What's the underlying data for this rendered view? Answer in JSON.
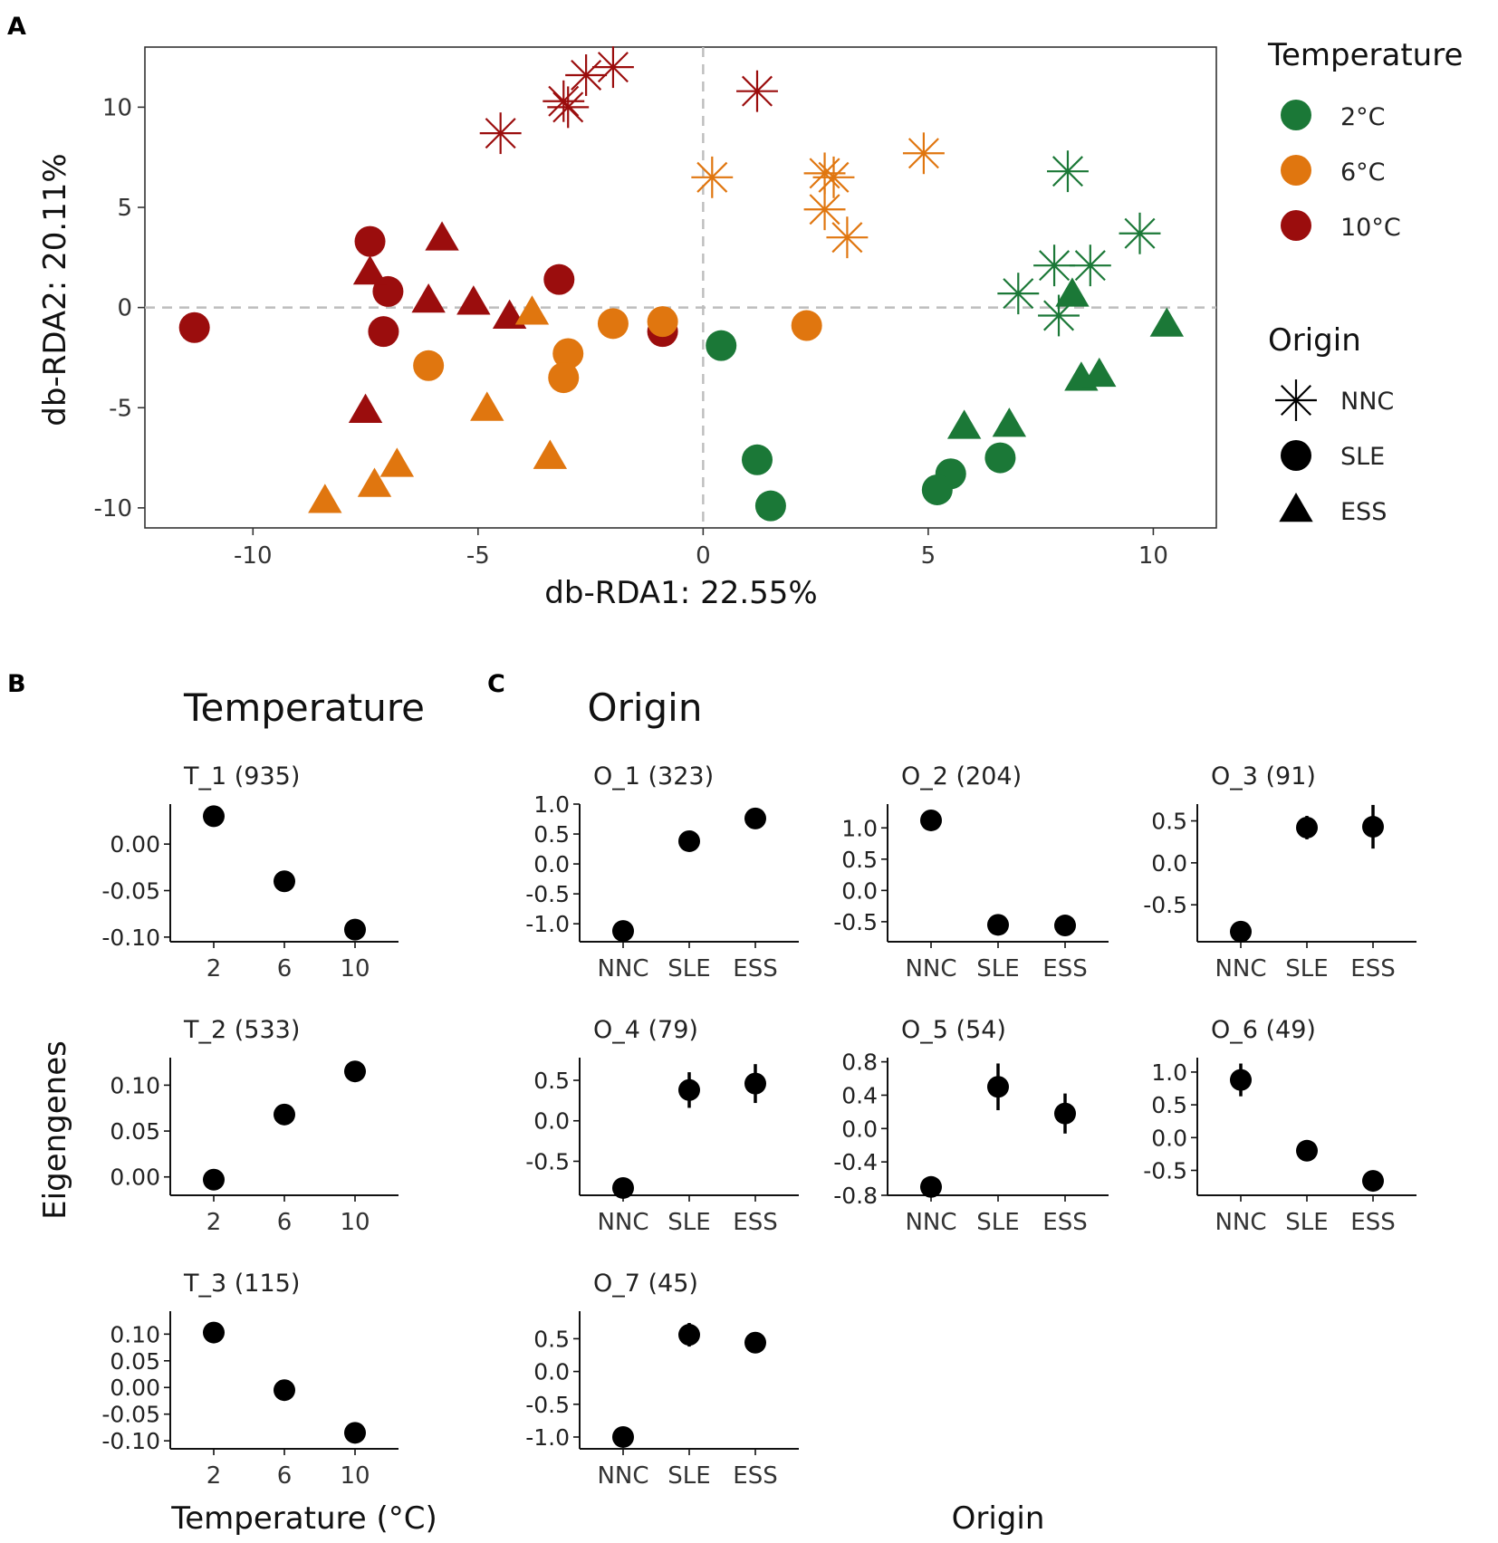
{
  "figure": {
    "panel_a_letter": "A",
    "panel_b_letter": "B",
    "panel_c_letter": "C"
  },
  "chart_data": [
    {
      "id": "A",
      "type": "scatter",
      "xlabel": "db-RDA1: 22.55%",
      "ylabel": "db-RDA2: 20.11%",
      "xlim": [
        -12.4,
        11.4
      ],
      "ylim": [
        -11,
        13
      ],
      "xticks": [
        -10,
        -5,
        0,
        5,
        10
      ],
      "yticks": [
        10,
        5,
        0,
        -5,
        -10
      ],
      "xtick_labels": [
        "-10",
        "-5",
        "0",
        "5",
        "10"
      ],
      "ytick_labels": [
        "10",
        "5",
        "0",
        "-5",
        "-10"
      ],
      "reference_lines": {
        "x": 0,
        "y": 0
      },
      "legend": {
        "color_title": "Temperature",
        "color_entries": [
          {
            "label": "2°C",
            "color": "#1b7837"
          },
          {
            "label": "6°C",
            "color": "#e0760f"
          },
          {
            "label": "10°C",
            "color": "#9b0d0d"
          }
        ],
        "shape_title": "Origin",
        "shape_entries": [
          {
            "label": "NNC",
            "shape": "asterisk"
          },
          {
            "label": "SLE",
            "shape": "circle"
          },
          {
            "label": "ESS",
            "shape": "triangle"
          }
        ]
      },
      "points": [
        {
          "temp": "10°C",
          "origin": "NNC",
          "x": -4.5,
          "y": 8.7
        },
        {
          "temp": "10°C",
          "origin": "NNC",
          "x": -3.1,
          "y": 10.3
        },
        {
          "temp": "10°C",
          "origin": "NNC",
          "x": -3.0,
          "y": 10.0
        },
        {
          "temp": "10°C",
          "origin": "NNC",
          "x": -2.6,
          "y": 11.6
        },
        {
          "temp": "10°C",
          "origin": "NNC",
          "x": -2.0,
          "y": 12.0
        },
        {
          "temp": "10°C",
          "origin": "NNC",
          "x": 1.2,
          "y": 10.8
        },
        {
          "temp": "6°C",
          "origin": "NNC",
          "x": 0.2,
          "y": 6.5
        },
        {
          "temp": "6°C",
          "origin": "NNC",
          "x": 2.7,
          "y": 6.7
        },
        {
          "temp": "6°C",
          "origin": "NNC",
          "x": 2.9,
          "y": 6.5
        },
        {
          "temp": "6°C",
          "origin": "NNC",
          "x": 2.7,
          "y": 4.9
        },
        {
          "temp": "6°C",
          "origin": "NNC",
          "x": 3.2,
          "y": 3.5
        },
        {
          "temp": "6°C",
          "origin": "NNC",
          "x": 4.9,
          "y": 7.7
        },
        {
          "temp": "2°C",
          "origin": "NNC",
          "x": 8.1,
          "y": 6.8
        },
        {
          "temp": "2°C",
          "origin": "NNC",
          "x": 9.7,
          "y": 3.7
        },
        {
          "temp": "2°C",
          "origin": "NNC",
          "x": 7.8,
          "y": 2.1
        },
        {
          "temp": "2°C",
          "origin": "NNC",
          "x": 8.6,
          "y": 2.1
        },
        {
          "temp": "2°C",
          "origin": "NNC",
          "x": 7.0,
          "y": 0.7
        },
        {
          "temp": "2°C",
          "origin": "NNC",
          "x": 7.9,
          "y": -0.4
        },
        {
          "temp": "10°C",
          "origin": "SLE",
          "x": -11.3,
          "y": -1.0
        },
        {
          "temp": "10°C",
          "origin": "SLE",
          "x": -7.4,
          "y": 3.3
        },
        {
          "temp": "10°C",
          "origin": "SLE",
          "x": -7.0,
          "y": 0.8
        },
        {
          "temp": "10°C",
          "origin": "SLE",
          "x": -7.1,
          "y": -1.2
        },
        {
          "temp": "10°C",
          "origin": "SLE",
          "x": -3.2,
          "y": 1.4
        },
        {
          "temp": "10°C",
          "origin": "SLE",
          "x": -0.9,
          "y": -1.2
        },
        {
          "temp": "6°C",
          "origin": "SLE",
          "x": -6.1,
          "y": -2.9
        },
        {
          "temp": "6°C",
          "origin": "SLE",
          "x": -3.0,
          "y": -2.3
        },
        {
          "temp": "6°C",
          "origin": "SLE",
          "x": -3.1,
          "y": -3.5
        },
        {
          "temp": "6°C",
          "origin": "SLE",
          "x": -2.0,
          "y": -0.8
        },
        {
          "temp": "6°C",
          "origin": "SLE",
          "x": -0.9,
          "y": -0.7
        },
        {
          "temp": "6°C",
          "origin": "SLE",
          "x": 2.3,
          "y": -0.9
        },
        {
          "temp": "2°C",
          "origin": "SLE",
          "x": 0.4,
          "y": -1.9
        },
        {
          "temp": "2°C",
          "origin": "SLE",
          "x": 1.2,
          "y": -7.6
        },
        {
          "temp": "2°C",
          "origin": "SLE",
          "x": 1.5,
          "y": -9.9
        },
        {
          "temp": "2°C",
          "origin": "SLE",
          "x": 5.5,
          "y": -8.3
        },
        {
          "temp": "2°C",
          "origin": "SLE",
          "x": 5.2,
          "y": -9.1
        },
        {
          "temp": "2°C",
          "origin": "SLE",
          "x": 6.6,
          "y": -7.5
        },
        {
          "temp": "10°C",
          "origin": "ESS",
          "x": -7.4,
          "y": 1.7
        },
        {
          "temp": "10°C",
          "origin": "ESS",
          "x": -5.8,
          "y": 3.4
        },
        {
          "temp": "10°C",
          "origin": "ESS",
          "x": -6.1,
          "y": 0.3
        },
        {
          "temp": "10°C",
          "origin": "ESS",
          "x": -5.1,
          "y": 0.2
        },
        {
          "temp": "10°C",
          "origin": "ESS",
          "x": -4.3,
          "y": -0.5
        },
        {
          "temp": "10°C",
          "origin": "ESS",
          "x": -7.5,
          "y": -5.2
        },
        {
          "temp": "6°C",
          "origin": "ESS",
          "x": -3.8,
          "y": -0.3
        },
        {
          "temp": "6°C",
          "origin": "ESS",
          "x": -4.8,
          "y": -5.1
        },
        {
          "temp": "6°C",
          "origin": "ESS",
          "x": -3.4,
          "y": -7.5
        },
        {
          "temp": "6°C",
          "origin": "ESS",
          "x": -8.4,
          "y": -9.7
        },
        {
          "temp": "6°C",
          "origin": "ESS",
          "x": -7.3,
          "y": -8.9
        },
        {
          "temp": "6°C",
          "origin": "ESS",
          "x": -6.8,
          "y": -7.9
        },
        {
          "temp": "2°C",
          "origin": "ESS",
          "x": 5.8,
          "y": -6.0
        },
        {
          "temp": "2°C",
          "origin": "ESS",
          "x": 6.8,
          "y": -5.9
        },
        {
          "temp": "2°C",
          "origin": "ESS",
          "x": 8.4,
          "y": -3.6
        },
        {
          "temp": "2°C",
          "origin": "ESS",
          "x": 8.8,
          "y": -3.4
        },
        {
          "temp": "2°C",
          "origin": "ESS",
          "x": 8.2,
          "y": 0.6
        },
        {
          "temp": "2°C",
          "origin": "ESS",
          "x": 10.3,
          "y": -0.9
        }
      ]
    },
    {
      "id": "B",
      "type": "scatter",
      "section_title": "Temperature",
      "xlabel": "Temperature (°C)",
      "ylabel": "Eigengenes",
      "facets": [
        {
          "title": "T_1 (935)",
          "categories": [
            "2",
            "6",
            "10"
          ],
          "values": [
            0.03,
            -0.04,
            -0.092
          ],
          "errors": [
            0,
            0,
            0
          ],
          "ylim": [
            -0.105,
            0.043
          ],
          "yticks": [
            0.0,
            -0.05,
            -0.1
          ],
          "ytick_labels": [
            "0.00",
            "-0.05",
            "-0.10"
          ]
        },
        {
          "title": "T_2 (533)",
          "categories": [
            "2",
            "6",
            "10"
          ],
          "values": [
            -0.003,
            0.068,
            0.115
          ],
          "errors": [
            0,
            0,
            0
          ],
          "ylim": [
            -0.02,
            0.13
          ],
          "yticks": [
            0.1,
            0.05,
            0.0
          ],
          "ytick_labels": [
            "0.10",
            "0.05",
            "0.00"
          ]
        },
        {
          "title": "T_3 (115)",
          "categories": [
            "2",
            "6",
            "10"
          ],
          "values": [
            0.103,
            -0.005,
            -0.085
          ],
          "errors": [
            0,
            0,
            0
          ],
          "ylim": [
            -0.115,
            0.143
          ],
          "yticks": [
            0.1,
            0.05,
            0.0,
            -0.05,
            -0.1
          ],
          "ytick_labels": [
            "0.10",
            "0.05",
            "0.00",
            "-0.05",
            "-0.10"
          ]
        }
      ]
    },
    {
      "id": "C",
      "type": "scatter",
      "section_title": "Origin",
      "xlabel": "Origin",
      "facets": [
        {
          "title": "O_1 (323)",
          "categories": [
            "NNC",
            "SLE",
            "ESS"
          ],
          "values": [
            -1.12,
            0.38,
            0.76
          ],
          "errors": [
            0,
            0,
            0
          ],
          "ylim": [
            -1.3,
            1.0
          ],
          "yticks": [
            1.0,
            0.5,
            0.0,
            -0.5,
            -1.0
          ],
          "ytick_labels": [
            "1.0",
            "0.5",
            "0.0",
            "-0.5",
            "-1.0"
          ]
        },
        {
          "title": "O_2 (204)",
          "categories": [
            "NNC",
            "SLE",
            "ESS"
          ],
          "values": [
            1.12,
            -0.55,
            -0.56
          ],
          "errors": [
            0,
            0,
            0
          ],
          "ylim": [
            -0.82,
            1.38
          ],
          "yticks": [
            1.0,
            0.5,
            0.0,
            -0.5
          ],
          "ytick_labels": [
            "1.0",
            "0.5",
            "0.0",
            "-0.5"
          ]
        },
        {
          "title": "O_3 (91)",
          "categories": [
            "NNC",
            "SLE",
            "ESS"
          ],
          "values": [
            -0.82,
            0.42,
            0.43
          ],
          "errors": [
            0,
            0.14,
            0.26
          ],
          "ylim": [
            -0.94,
            0.7
          ],
          "yticks": [
            0.5,
            0.0,
            -0.5
          ],
          "ytick_labels": [
            "0.5",
            "0.0",
            "-0.5"
          ]
        },
        {
          "title": "O_4 (79)",
          "categories": [
            "NNC",
            "SLE",
            "ESS"
          ],
          "values": [
            -0.83,
            0.38,
            0.46
          ],
          "errors": [
            0,
            0.22,
            0.24
          ],
          "ylim": [
            -0.92,
            0.78
          ],
          "yticks": [
            0.5,
            0.0,
            -0.5
          ],
          "ytick_labels": [
            "0.5",
            "0.0",
            "-0.5"
          ]
        },
        {
          "title": "O_5 (54)",
          "categories": [
            "NNC",
            "SLE",
            "ESS"
          ],
          "values": [
            -0.7,
            0.5,
            0.18
          ],
          "errors": [
            0,
            0.28,
            0.24
          ],
          "ylim": [
            -0.8,
            0.85
          ],
          "yticks": [
            0.8,
            0.4,
            0.0,
            -0.4,
            -0.8
          ],
          "ytick_labels": [
            "0.8",
            "0.4",
            "0.0",
            "-0.4",
            "-0.8"
          ]
        },
        {
          "title": "O_6 (49)",
          "categories": [
            "NNC",
            "SLE",
            "ESS"
          ],
          "values": [
            0.88,
            -0.2,
            -0.66
          ],
          "errors": [
            0.25,
            0,
            0
          ],
          "ylim": [
            -0.88,
            1.22
          ],
          "yticks": [
            1.0,
            0.5,
            0.0,
            -0.5
          ],
          "ytick_labels": [
            "1.0",
            "0.5",
            "0.0",
            "-0.5"
          ]
        },
        {
          "title": "O_7 (45)",
          "categories": [
            "NNC",
            "SLE",
            "ESS"
          ],
          "values": [
            -1.0,
            0.56,
            0.44
          ],
          "errors": [
            0,
            0.18,
            0.16
          ],
          "ylim": [
            -1.18,
            0.92
          ],
          "yticks": [
            0.5,
            0.0,
            -0.5,
            -1.0
          ],
          "ytick_labels": [
            "0.5",
            "0.0",
            "-0.5",
            "-1.0"
          ]
        }
      ]
    }
  ]
}
